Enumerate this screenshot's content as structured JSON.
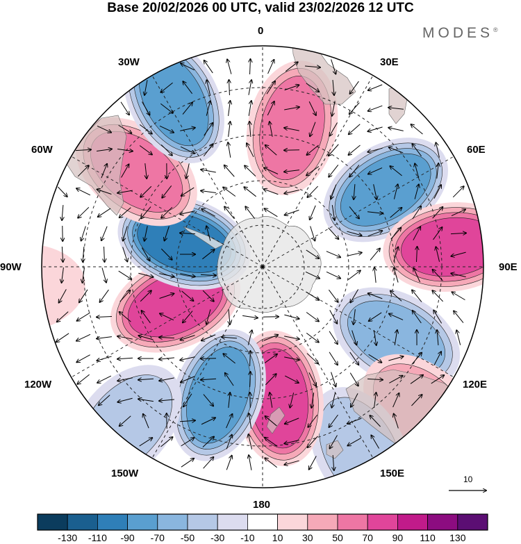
{
  "title": "Base 20/02/2026 00 UTC, valid 23/02/2026 12 UTC",
  "brand": "MODES",
  "brand_mark": "®",
  "longitude_labels": {
    "lon_0": "0",
    "lon_30e": "30E",
    "lon_60e": "60E",
    "lon_90e": "90E",
    "lon_120e": "120E",
    "lon_150e": "150E",
    "lon_180": "180",
    "lon_150w": "150W",
    "lon_120w": "120W",
    "lon_90w": "90W",
    "lon_60w": "60W",
    "lon_30w": "30W"
  },
  "reference_vector": "10",
  "colorbar": {
    "colors": [
      "#0b3c5d",
      "#1a5f8f",
      "#2f7fb8",
      "#5a9fd0",
      "#8ab6df",
      "#b5c8e6",
      "#dcdcef",
      "#ffffff",
      "#fbd6da",
      "#f6a9b8",
      "#ee76a4",
      "#e0459a",
      "#c11b8a",
      "#8c0c80",
      "#5b0e73"
    ],
    "ticks": [
      "-130",
      "-110",
      "-90",
      "-70",
      "-50",
      "-30",
      "-10",
      "10",
      "30",
      "50",
      "70",
      "90",
      "110",
      "130"
    ]
  },
  "anomaly_centers": [
    {
      "lon": 12,
      "lat": -45,
      "value": 55
    },
    {
      "lon": 58,
      "lat": -44,
      "value": -85
    },
    {
      "lon": 84,
      "lat": -30,
      "value": 75
    },
    {
      "lon": 118,
      "lat": -42,
      "value": -55
    },
    {
      "lon": 132,
      "lat": -22,
      "value": 35
    },
    {
      "lon": 152,
      "lat": -24,
      "value": -45
    },
    {
      "lon": 173,
      "lat": -48,
      "value": 85
    },
    {
      "lon": -161,
      "lat": -47,
      "value": -70
    },
    {
      "lon": -139,
      "lat": -24,
      "value": -45
    },
    {
      "lon": -113,
      "lat": -60,
      "value": 80
    },
    {
      "lon": -73,
      "lat": -64,
      "value": -95
    },
    {
      "lon": -53,
      "lat": -40,
      "value": 60
    },
    {
      "lon": -28,
      "lat": -30,
      "value": -70
    },
    {
      "lon": -95,
      "lat": -12,
      "value": 20
    }
  ]
}
